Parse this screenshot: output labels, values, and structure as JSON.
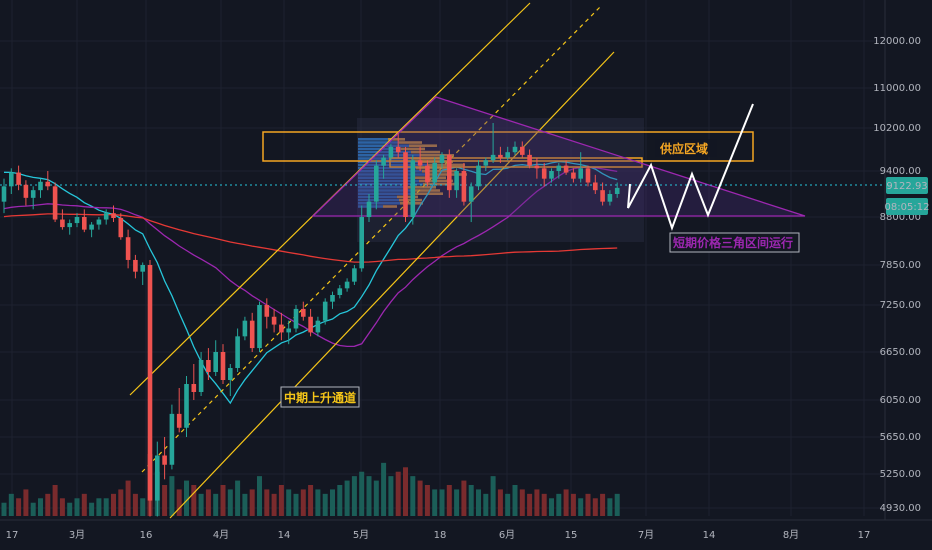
{
  "chart_data": {
    "type": "candlestick",
    "price_axis": {
      "ticks": [
        "12000.00",
        "11000.00",
        "10200.00",
        "9400.00",
        "8800.00",
        "7850.00",
        "7250.00",
        "6650.00",
        "6050.00",
        "5650.00",
        "5250.00",
        "4930.00"
      ],
      "current_price": "9122.93",
      "countdown": "08:05:12",
      "ylim": [
        4800,
        12450
      ]
    },
    "time_axis": {
      "ticks": [
        "17",
        "3月",
        "16",
        "4月",
        "14",
        "5月",
        "18",
        "6月",
        "15",
        "7月",
        "14",
        "8月",
        "17"
      ]
    },
    "annotations": {
      "supply_zone": "供应区域",
      "triangle": "短期价格三角区间运行",
      "channel": "中期上升通道"
    },
    "candles": [
      [
        9000,
        9300,
        8850,
        9200
      ],
      [
        9200,
        9450,
        9100,
        9380
      ],
      [
        9380,
        9500,
        9150,
        9220
      ],
      [
        9220,
        9280,
        8950,
        9050
      ],
      [
        9050,
        9200,
        8900,
        9150
      ],
      [
        9150,
        9300,
        9050,
        9260
      ],
      [
        9260,
        9400,
        9150,
        9200
      ],
      [
        9200,
        9250,
        8700,
        8750
      ],
      [
        8750,
        8900,
        8550,
        8600
      ],
      [
        8600,
        8750,
        8450,
        8680
      ],
      [
        8680,
        8850,
        8600,
        8800
      ],
      [
        8800,
        8900,
        8500,
        8550
      ],
      [
        8550,
        8700,
        8400,
        8650
      ],
      [
        8650,
        8800,
        8550,
        8750
      ],
      [
        8750,
        8900,
        8650,
        8850
      ],
      [
        8850,
        8950,
        8700,
        8780
      ],
      [
        8780,
        8850,
        8350,
        8400
      ],
      [
        8400,
        8550,
        7800,
        7950
      ],
      [
        7950,
        8050,
        7650,
        7750
      ],
      [
        7750,
        7900,
        7550,
        7850
      ],
      [
        7850,
        7950,
        4850,
        5000
      ],
      [
        5000,
        5600,
        4850,
        5450
      ],
      [
        5450,
        5650,
        5200,
        5350
      ],
      [
        5350,
        6000,
        5300,
        5900
      ],
      [
        5900,
        6200,
        5700,
        5750
      ],
      [
        5750,
        6350,
        5650,
        6250
      ],
      [
        6250,
        6500,
        6050,
        6150
      ],
      [
        6150,
        6650,
        6100,
        6550
      ],
      [
        6550,
        6700,
        6300,
        6400
      ],
      [
        6400,
        6800,
        6350,
        6650
      ],
      [
        6650,
        6750,
        6250,
        6300
      ],
      [
        6300,
        6500,
        6100,
        6450
      ],
      [
        6450,
        6950,
        6400,
        6850
      ],
      [
        6850,
        7100,
        6800,
        7050
      ],
      [
        7050,
        7150,
        6650,
        6700
      ],
      [
        6700,
        7300,
        6650,
        7250
      ],
      [
        7250,
        7350,
        6950,
        7100
      ],
      [
        7100,
        7200,
        6900,
        7000
      ],
      [
        7000,
        7150,
        6800,
        6900
      ],
      [
        6900,
        7050,
        6750,
        6950
      ],
      [
        6950,
        7250,
        6900,
        7200
      ],
      [
        7200,
        7300,
        7050,
        7100
      ],
      [
        7100,
        7200,
        6850,
        6900
      ],
      [
        6900,
        7100,
        6850,
        7050
      ],
      [
        7050,
        7350,
        7000,
        7300
      ],
      [
        7300,
        7450,
        7200,
        7400
      ],
      [
        7400,
        7550,
        7350,
        7500
      ],
      [
        7500,
        7650,
        7450,
        7600
      ],
      [
        7600,
        7850,
        7550,
        7800
      ],
      [
        7800,
        8950,
        7750,
        8800
      ],
      [
        8800,
        9100,
        8700,
        9000
      ],
      [
        9000,
        9600,
        8900,
        9500
      ],
      [
        9500,
        9700,
        9300,
        9650
      ],
      [
        9650,
        9900,
        9600,
        9850
      ],
      [
        9850,
        10100,
        9650,
        9750
      ],
      [
        9750,
        9850,
        8700,
        8800
      ],
      [
        8800,
        9700,
        8650,
        9600
      ],
      [
        9600,
        9850,
        9400,
        9500
      ],
      [
        9500,
        9600,
        9200,
        9250
      ],
      [
        9250,
        9650,
        9200,
        9550
      ],
      [
        9550,
        9750,
        9450,
        9700
      ],
      [
        9700,
        9800,
        9050,
        9150
      ],
      [
        9150,
        9450,
        9050,
        9400
      ],
      [
        9400,
        9550,
        8950,
        9000
      ],
      [
        9000,
        9250,
        8700,
        9200
      ],
      [
        9200,
        9600,
        9150,
        9500
      ],
      [
        9500,
        9650,
        9400,
        9600
      ],
      [
        9600,
        10300,
        9550,
        9700
      ],
      [
        9700,
        9850,
        9550,
        9650
      ],
      [
        9650,
        9850,
        9600,
        9750
      ],
      [
        9750,
        9950,
        9700,
        9850
      ],
      [
        9850,
        9950,
        9650,
        9700
      ],
      [
        9700,
        9800,
        9450,
        9500
      ],
      [
        9500,
        9650,
        9300,
        9450
      ],
      [
        9450,
        9550,
        9200,
        9300
      ],
      [
        9300,
        9450,
        9250,
        9400
      ],
      [
        9400,
        9550,
        9300,
        9500
      ],
      [
        9500,
        9600,
        9350,
        9380
      ],
      [
        9380,
        9450,
        9250,
        9300
      ],
      [
        9300,
        9750,
        9250,
        9450
      ],
      [
        9450,
        9500,
        9200,
        9250
      ],
      [
        9250,
        9350,
        9100,
        9150
      ],
      [
        9150,
        9250,
        8950,
        9000
      ],
      [
        9000,
        9150,
        8950,
        9100
      ],
      [
        9100,
        9250,
        9050,
        9180
      ]
    ],
    "volumes": [
      3,
      5,
      4,
      6,
      3,
      4,
      5,
      7,
      4,
      3,
      4,
      5,
      3,
      4,
      4,
      5,
      6,
      8,
      5,
      4,
      14,
      10,
      7,
      9,
      6,
      8,
      7,
      5,
      6,
      5,
      7,
      6,
      8,
      5,
      6,
      9,
      6,
      5,
      7,
      6,
      5,
      6,
      7,
      6,
      5,
      6,
      7,
      8,
      9,
      10,
      9,
      8,
      12,
      9,
      10,
      11,
      9,
      8,
      7,
      6,
      6,
      7,
      6,
      8,
      7,
      6,
      5,
      9,
      6,
      5,
      7,
      6,
      5,
      6,
      5,
      4,
      5,
      6,
      5,
      4,
      5,
      4,
      5,
      4,
      5
    ]
  },
  "colors": {
    "background": "#131722",
    "up": "#26a69a",
    "down": "#ef5350",
    "supply_zone": "#f5a623",
    "triangle": "#9c27b0",
    "channel": "#f5c518",
    "forecast": "#ffffff",
    "ma_fast": "#26c6da",
    "ma_mid": "#9c27b0",
    "ma_slow": "#e53935",
    "price_line": "#26c6da"
  }
}
